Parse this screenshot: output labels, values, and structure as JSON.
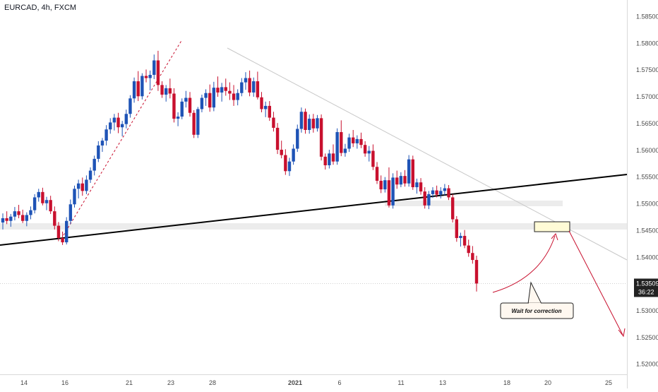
{
  "header": {
    "symbol_label": "EURCAD, 4h, FXCM"
  },
  "price_tag": {
    "price": "1.53509",
    "timer": "36:22"
  },
  "annotation": {
    "callout_text": "Wait for correction"
  },
  "colors": {
    "up_candle": "#1e53b6",
    "down_candle": "#c8102e",
    "trendline": "#000000",
    "support_zone": "#e9e9e9",
    "target_box": "#fffbd6",
    "arrow": "#c8102e",
    "price_tag_bg": "#222222"
  },
  "chart_data": {
    "type": "candlestick",
    "title": "EURCAD, 4h, FXCM",
    "ylim": [
      1.5166,
      1.5873
    ],
    "y_ticks": [
      "1.52000",
      "1.52500",
      "1.53000",
      "1.53500",
      "1.54000",
      "1.54500",
      "1.55000",
      "1.55500",
      "1.56000",
      "1.56500",
      "1.57000",
      "1.57500",
      "1.58000",
      "1.58500"
    ],
    "x_ticks": [
      "14",
      "16",
      "21",
      "23",
      "28",
      "2021",
      "6",
      "11",
      "13",
      "18",
      "20",
      "25"
    ],
    "last_price": 1.53509,
    "grid": false,
    "legend": "none",
    "candles": [
      [
        1.5465,
        1.5482,
        1.5452,
        1.5473
      ],
      [
        1.5473,
        1.5486,
        1.5462,
        1.5468
      ],
      [
        1.5468,
        1.5481,
        1.5457,
        1.5476
      ],
      [
        1.5476,
        1.5494,
        1.5469,
        1.5486
      ],
      [
        1.5486,
        1.5498,
        1.5473,
        1.5479
      ],
      [
        1.5479,
        1.5489,
        1.5464,
        1.5468
      ],
      [
        1.5468,
        1.5484,
        1.5458,
        1.5479
      ],
      [
        1.5479,
        1.5495,
        1.5471,
        1.5488
      ],
      [
        1.5488,
        1.5518,
        1.5482,
        1.5512
      ],
      [
        1.5512,
        1.5528,
        1.5504,
        1.5522
      ],
      [
        1.5522,
        1.553,
        1.5497,
        1.5501
      ],
      [
        1.5501,
        1.5513,
        1.5488,
        1.5507
      ],
      [
        1.5507,
        1.5515,
        1.5481,
        1.5486
      ],
      [
        1.5486,
        1.5495,
        1.5452,
        1.5459
      ],
      [
        1.5459,
        1.5466,
        1.543,
        1.5436
      ],
      [
        1.5436,
        1.5448,
        1.5423,
        1.5428
      ],
      [
        1.5428,
        1.5475,
        1.5424,
        1.5468
      ],
      [
        1.5468,
        1.5508,
        1.5462,
        1.5499
      ],
      [
        1.5499,
        1.5534,
        1.5493,
        1.5528
      ],
      [
        1.5528,
        1.5545,
        1.551,
        1.5538
      ],
      [
        1.5538,
        1.5549,
        1.5515,
        1.5524
      ],
      [
        1.5524,
        1.5553,
        1.5518,
        1.5545
      ],
      [
        1.5545,
        1.5568,
        1.5539,
        1.5562
      ],
      [
        1.5562,
        1.559,
        1.5553,
        1.5584
      ],
      [
        1.5584,
        1.5617,
        1.5578,
        1.5609
      ],
      [
        1.5609,
        1.5623,
        1.5597,
        1.5618
      ],
      [
        1.5618,
        1.5647,
        1.5609,
        1.5639
      ],
      [
        1.5639,
        1.566,
        1.5631,
        1.5652
      ],
      [
        1.5652,
        1.5668,
        1.5637,
        1.5661
      ],
      [
        1.5661,
        1.567,
        1.5632,
        1.5643
      ],
      [
        1.5643,
        1.5655,
        1.5626,
        1.5649
      ],
      [
        1.5649,
        1.5676,
        1.5641,
        1.5668
      ],
      [
        1.5668,
        1.5703,
        1.5661,
        1.5697
      ],
      [
        1.5697,
        1.5736,
        1.5689,
        1.5729
      ],
      [
        1.5729,
        1.5748,
        1.5692,
        1.5701
      ],
      [
        1.5701,
        1.5744,
        1.5695,
        1.5739
      ],
      [
        1.5739,
        1.5751,
        1.5727,
        1.5735
      ],
      [
        1.5735,
        1.5749,
        1.5712,
        1.5741
      ],
      [
        1.5741,
        1.5779,
        1.5733,
        1.5768
      ],
      [
        1.5768,
        1.5786,
        1.5711,
        1.5722
      ],
      [
        1.5722,
        1.5729,
        1.5698,
        1.5704
      ],
      [
        1.5704,
        1.5722,
        1.5691,
        1.5716
      ],
      [
        1.5716,
        1.5734,
        1.5697,
        1.5706
      ],
      [
        1.5706,
        1.5716,
        1.5652,
        1.5659
      ],
      [
        1.5659,
        1.5671,
        1.5645,
        1.5663
      ],
      [
        1.5663,
        1.5697,
        1.5658,
        1.5691
      ],
      [
        1.5691,
        1.5711,
        1.568,
        1.5698
      ],
      [
        1.5698,
        1.5709,
        1.5663,
        1.567
      ],
      [
        1.567,
        1.5675,
        1.5623,
        1.5629
      ],
      [
        1.5629,
        1.5681,
        1.5623,
        1.5677
      ],
      [
        1.5677,
        1.5704,
        1.5671,
        1.5698
      ],
      [
        1.5698,
        1.5714,
        1.5683,
        1.5707
      ],
      [
        1.5707,
        1.5723,
        1.5672,
        1.568
      ],
      [
        1.568,
        1.5728,
        1.5673,
        1.5717
      ],
      [
        1.5717,
        1.5738,
        1.57,
        1.5708
      ],
      [
        1.5708,
        1.5726,
        1.5691,
        1.5718
      ],
      [
        1.5718,
        1.5734,
        1.5702,
        1.5711
      ],
      [
        1.5711,
        1.5727,
        1.5694,
        1.5706
      ],
      [
        1.5706,
        1.5722,
        1.5683,
        1.5694
      ],
      [
        1.5694,
        1.5714,
        1.5684,
        1.5707
      ],
      [
        1.5707,
        1.5735,
        1.5701,
        1.5727
      ],
      [
        1.5727,
        1.5746,
        1.5713,
        1.5735
      ],
      [
        1.5735,
        1.5749,
        1.5701,
        1.5708
      ],
      [
        1.5708,
        1.5736,
        1.57,
        1.5729
      ],
      [
        1.5729,
        1.5747,
        1.5695,
        1.5699
      ],
      [
        1.5699,
        1.5709,
        1.5671,
        1.5677
      ],
      [
        1.5677,
        1.5691,
        1.5662,
        1.5683
      ],
      [
        1.5683,
        1.5692,
        1.5655,
        1.5661
      ],
      [
        1.5661,
        1.5672,
        1.5635,
        1.5642
      ],
      [
        1.5642,
        1.5651,
        1.5593,
        1.5601
      ],
      [
        1.5601,
        1.5618,
        1.5585,
        1.5591
      ],
      [
        1.5591,
        1.5602,
        1.5554,
        1.5561
      ],
      [
        1.5561,
        1.5586,
        1.5552,
        1.5579
      ],
      [
        1.5579,
        1.5611,
        1.5573,
        1.5603
      ],
      [
        1.5603,
        1.5648,
        1.5597,
        1.564
      ],
      [
        1.564,
        1.568,
        1.5633,
        1.5672
      ],
      [
        1.5672,
        1.5678,
        1.5631,
        1.5638
      ],
      [
        1.5638,
        1.5667,
        1.5631,
        1.5659
      ],
      [
        1.5659,
        1.5668,
        1.5633,
        1.5641
      ],
      [
        1.5641,
        1.5666,
        1.5635,
        1.566
      ],
      [
        1.566,
        1.5667,
        1.5581,
        1.5588
      ],
      [
        1.5588,
        1.5594,
        1.5564,
        1.5572
      ],
      [
        1.5572,
        1.5601,
        1.5566,
        1.5594
      ],
      [
        1.5594,
        1.5611,
        1.5573,
        1.5579
      ],
      [
        1.5579,
        1.5641,
        1.5573,
        1.5634
      ],
      [
        1.5634,
        1.5656,
        1.5589,
        1.5595
      ],
      [
        1.5595,
        1.5612,
        1.5588,
        1.5603
      ],
      [
        1.5603,
        1.5631,
        1.5597,
        1.5624
      ],
      [
        1.5624,
        1.5638,
        1.5606,
        1.5613
      ],
      [
        1.5613,
        1.5628,
        1.5603,
        1.5621
      ],
      [
        1.5621,
        1.5633,
        1.5604,
        1.561
      ],
      [
        1.561,
        1.5617,
        1.5588,
        1.5594
      ],
      [
        1.5594,
        1.5608,
        1.5579,
        1.5599
      ],
      [
        1.5599,
        1.5611,
        1.5563,
        1.5569
      ],
      [
        1.5569,
        1.5578,
        1.5537,
        1.5543
      ],
      [
        1.5543,
        1.5553,
        1.552,
        1.5527
      ],
      [
        1.5527,
        1.555,
        1.5521,
        1.5544
      ],
      [
        1.5544,
        1.5568,
        1.5493,
        1.5497
      ],
      [
        1.5497,
        1.5557,
        1.5491,
        1.5549
      ],
      [
        1.5549,
        1.5562,
        1.5528,
        1.5536
      ],
      [
        1.5536,
        1.5559,
        1.5531,
        1.5552
      ],
      [
        1.5552,
        1.5563,
        1.5532,
        1.5538
      ],
      [
        1.5538,
        1.5591,
        1.5532,
        1.5583
      ],
      [
        1.5583,
        1.559,
        1.5526,
        1.5531
      ],
      [
        1.5531,
        1.5547,
        1.5519,
        1.554
      ],
      [
        1.554,
        1.5548,
        1.5517,
        1.5523
      ],
      [
        1.5523,
        1.5531,
        1.5491,
        1.5497
      ],
      [
        1.5497,
        1.5524,
        1.549,
        1.5518
      ],
      [
        1.5518,
        1.5531,
        1.5511,
        1.5525
      ],
      [
        1.5525,
        1.5534,
        1.5512,
        1.5517
      ],
      [
        1.5517,
        1.5531,
        1.551,
        1.5524
      ],
      [
        1.5524,
        1.5537,
        1.5516,
        1.5529
      ],
      [
        1.5529,
        1.5535,
        1.5507,
        1.5512
      ],
      [
        1.5512,
        1.5518,
        1.5465,
        1.5471
      ],
      [
        1.5471,
        1.5477,
        1.5429,
        1.5436
      ],
      [
        1.5436,
        1.5446,
        1.542,
        1.544
      ],
      [
        1.544,
        1.5451,
        1.5417,
        1.5422
      ],
      [
        1.5422,
        1.5433,
        1.5401,
        1.5408
      ],
      [
        1.5408,
        1.5421,
        1.5388,
        1.5395
      ],
      [
        1.5395,
        1.5403,
        1.5336,
        1.5351
      ]
    ]
  }
}
